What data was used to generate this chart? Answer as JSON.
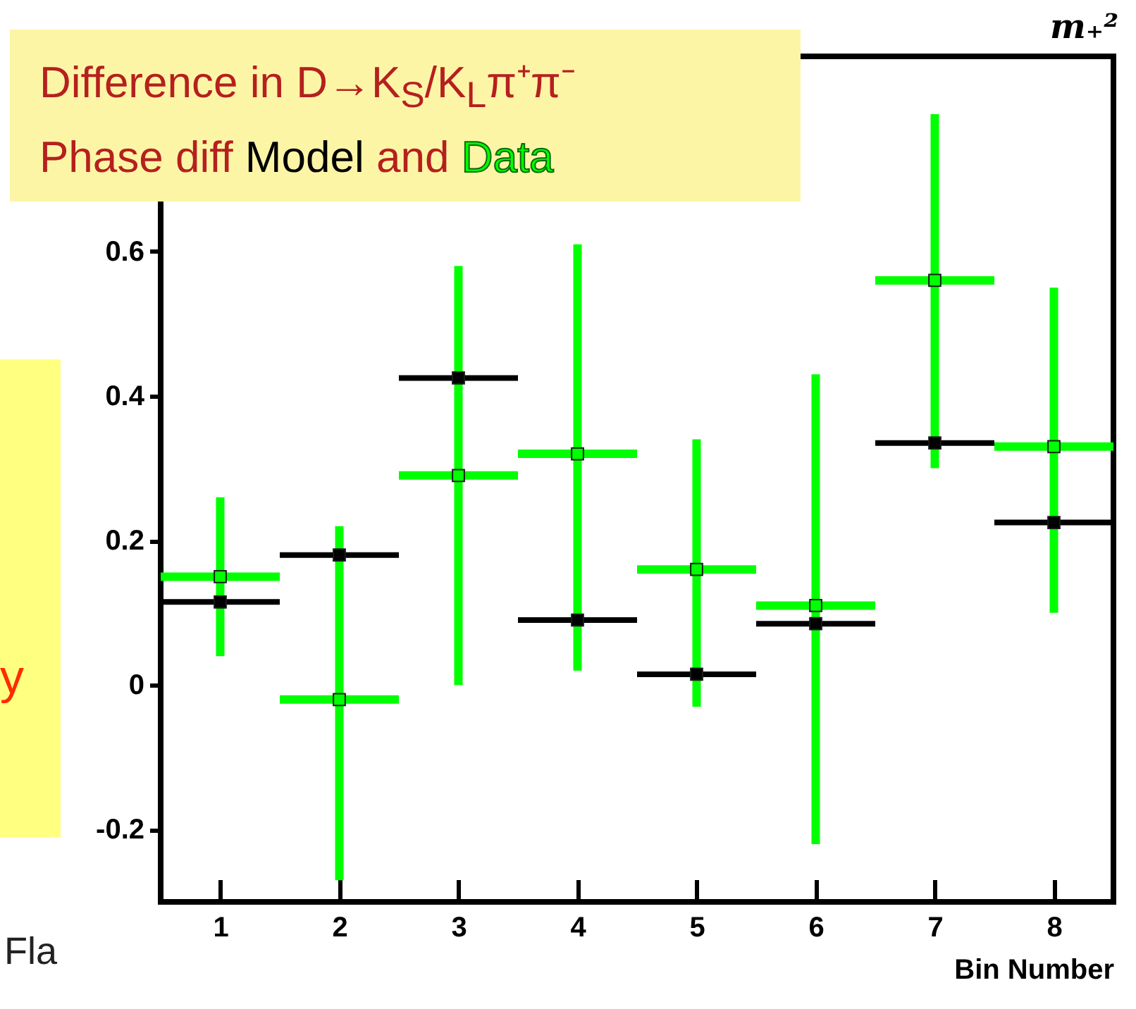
{
  "chart_data": {
    "type": "scatter",
    "title": "Difference in D→K$_{S}$/K$_{L}$π⁺π⁻",
    "subtitle": "Phase diff",
    "xlabel": "Bin Number",
    "annotations": [
      "m₊²",
      "and",
      "y",
      "Fla"
    ],
    "x": [
      1,
      2,
      3,
      4,
      5,
      6,
      7,
      8
    ],
    "xlim": [
      0.5,
      8.5
    ],
    "xticks": [
      1,
      2,
      3,
      4,
      5,
      6,
      7,
      8
    ],
    "ylim": [
      -0.3,
      0.87
    ],
    "yticks": [
      -0.2,
      0,
      0.2,
      0.4,
      0.6
    ],
    "marker": "square",
    "grid": false,
    "series": [
      {
        "name": "Model",
        "color": "#000000",
        "values": [
          0.115,
          0.18,
          0.425,
          0.09,
          0.015,
          0.085,
          0.335,
          0.225
        ],
        "xerrors": [
          0.5,
          0.5,
          0.5,
          0.5,
          0.5,
          0.5,
          0.5,
          0.5
        ]
      },
      {
        "name": "Data",
        "color": "#00ff00",
        "values": [
          0.15,
          -0.02,
          0.29,
          0.32,
          0.16,
          0.11,
          0.56,
          0.33
        ],
        "xerrors": [
          0.5,
          0.5,
          0.5,
          0.5,
          0.5,
          0.5,
          0.5,
          0.5
        ],
        "errors": [
          0.11,
          [
            -0.27,
            0.22
          ],
          0.29,
          [
            0.02,
            0.61
          ],
          [
            -0.03,
            0.34
          ],
          [
            -0.22,
            0.43
          ],
          [
            0.3,
            0.79
          ],
          [
            0.1,
            0.55
          ]
        ]
      }
    ]
  }
}
